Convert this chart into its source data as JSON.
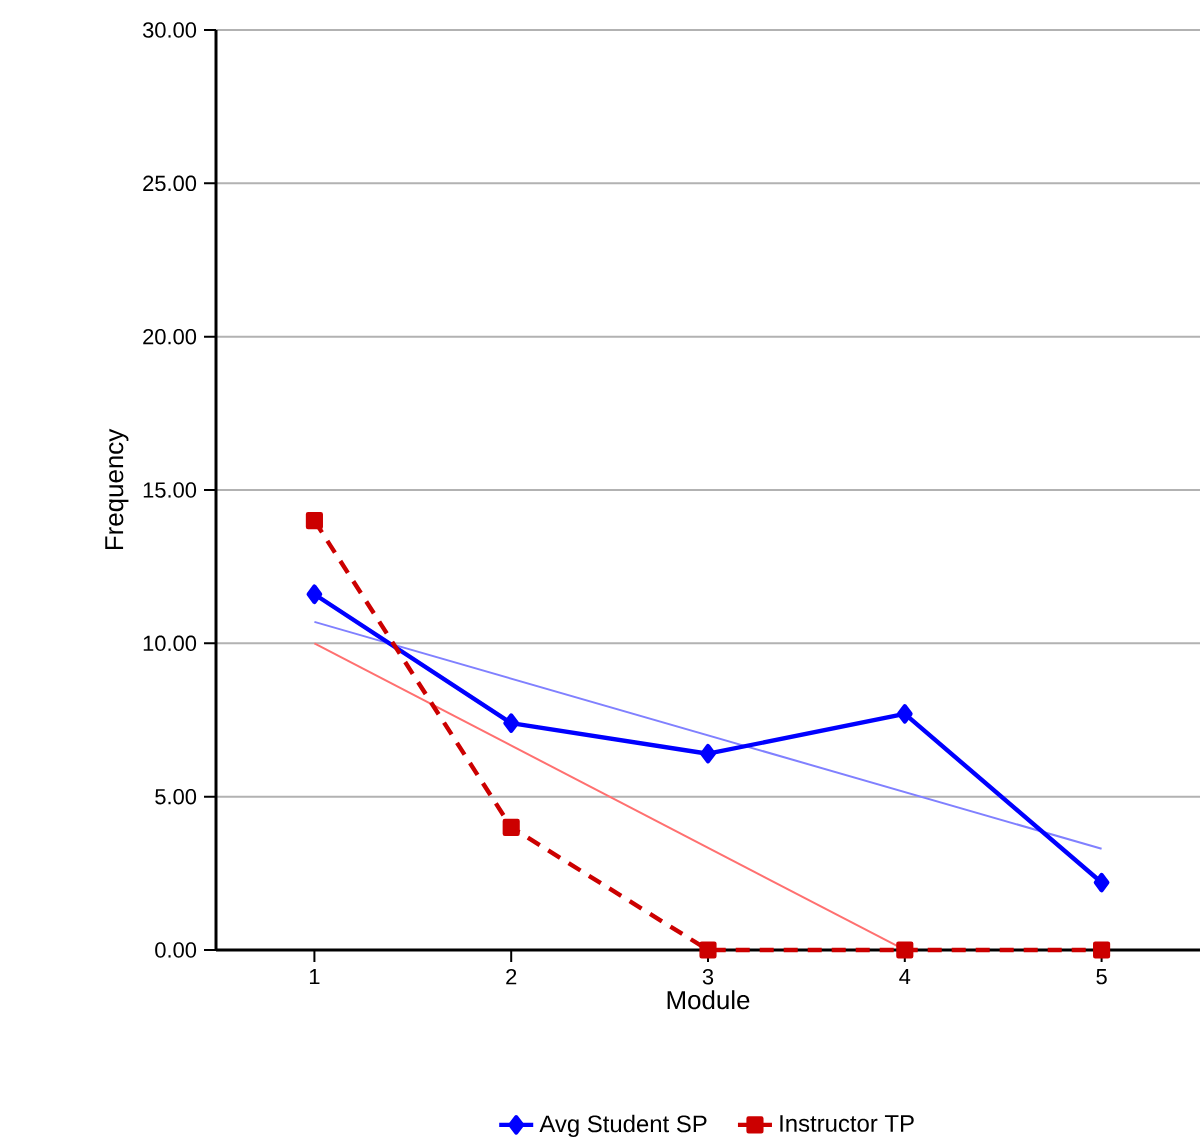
{
  "chart_data": {
    "type": "line",
    "xlabel": "Module",
    "ylabel": "Frequency",
    "x": [
      1,
      2,
      3,
      4,
      5
    ],
    "xlim": [
      0.5,
      5.5
    ],
    "xticks": [
      1,
      2,
      3,
      4,
      5
    ],
    "ylim": [
      0,
      30
    ],
    "yticks": [
      {
        "value": 0,
        "label": "0.00"
      },
      {
        "value": 5,
        "label": "5.00"
      },
      {
        "value": 10,
        "label": "10.00"
      },
      {
        "value": 15,
        "label": "15.00"
      },
      {
        "value": 20,
        "label": "20.00"
      },
      {
        "value": 25,
        "label": "25.00"
      },
      {
        "value": 30,
        "label": "30.00"
      }
    ],
    "grid": "y",
    "legend": "bottom",
    "series": [
      {
        "name": "Avg Student SP",
        "color": "#0000ff",
        "marker": "diamond",
        "line_style": "solid",
        "values": [
          11.6,
          7.4,
          6.4,
          7.7,
          2.2
        ]
      },
      {
        "name": "Instructor TP",
        "color": "#cc0000",
        "marker": "square",
        "line_style": "dashed",
        "values": [
          14.0,
          4.0,
          0,
          0,
          0
        ]
      },
      {
        "color": "#8080ff",
        "marker": "none",
        "line_style": "solid",
        "x": [
          1,
          5
        ],
        "values": [
          10.7,
          3.3
        ]
      },
      {
        "color": "#ff7070",
        "marker": "none",
        "line_style": "solid",
        "x": [
          1,
          4
        ],
        "values": [
          10.0,
          0
        ]
      }
    ]
  }
}
